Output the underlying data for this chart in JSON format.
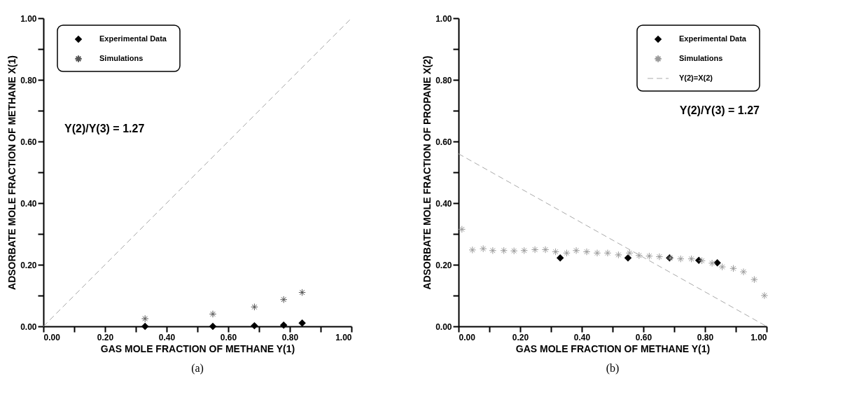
{
  "chart_data": [
    {
      "type": "scatter",
      "xlabel": "GAS MOLE FRACTION OF METHANE Y(1)",
      "ylabel": "ADSORBATE MOLE FRACTION OF METHANE X(1)",
      "xlim": [
        0,
        1
      ],
      "ylim": [
        0,
        1
      ],
      "xticks": [
        {
          "value": 0,
          "label": "0.00"
        },
        {
          "value": 0.1,
          "label": null
        },
        {
          "value": 0.2,
          "label": "0.20"
        },
        {
          "value": 0.3,
          "label": null
        },
        {
          "value": 0.4,
          "label": "0.40"
        },
        {
          "value": 0.5,
          "label": null
        },
        {
          "value": 0.6,
          "label": "0.60"
        },
        {
          "value": 0.7,
          "label": null
        },
        {
          "value": 0.8,
          "label": "0.80"
        },
        {
          "value": 0.9,
          "label": null
        },
        {
          "value": 1,
          "label": "1.00"
        }
      ],
      "yticks": [
        {
          "value": 0,
          "label": "0.00"
        },
        {
          "value": 0.1,
          "label": null
        },
        {
          "value": 0.2,
          "label": "0.20"
        },
        {
          "value": 0.3,
          "label": null
        },
        {
          "value": 0.4,
          "label": "0.40"
        },
        {
          "value": 0.5,
          "label": null
        },
        {
          "value": 0.6,
          "label": "0.60"
        },
        {
          "value": 0.7,
          "label": null
        },
        {
          "value": 0.8,
          "label": "0.80"
        },
        {
          "value": 0.9,
          "label": null
        },
        {
          "value": 1,
          "label": "1.00"
        }
      ],
      "series": [
        {
          "name": "Experimental Data",
          "marker": "diamond",
          "color": "#000000",
          "x": [
            0.33,
            0.55,
            0.685,
            0.78,
            0.84
          ],
          "values": [
            0,
            0,
            0.002,
            0.004,
            0.011
          ]
        },
        {
          "name": "Simulations",
          "marker": "cross",
          "color": "#555555",
          "x": [
            0.33,
            0.55,
            0.685,
            0.78,
            0.84
          ],
          "values": [
            0.025,
            0.04,
            0.063,
            0.087,
            0.11
          ]
        },
        {
          "type": "line",
          "line_style": "dashed",
          "color": "#aaaaaa",
          "x": [
            0,
            1
          ],
          "values": [
            0,
            1
          ]
        }
      ],
      "legend": "top left",
      "grid": false,
      "annotations": [
        "Y(2)/Y(3) = 1.27",
        "(a)"
      ]
    },
    {
      "type": "scatter",
      "xlabel": "GAS MOLE FRACTION OF METHANE Y(1)",
      "ylabel": "ADSORBATE MOLE FRACTION OF PROPANE  X(2)",
      "xlim": [
        0,
        1
      ],
      "ylim": [
        0,
        1
      ],
      "xticks": [
        {
          "value": 0,
          "label": "0.00"
        },
        {
          "value": 0.1,
          "label": null
        },
        {
          "value": 0.2,
          "label": "0.20"
        },
        {
          "value": 0.3,
          "label": null
        },
        {
          "value": 0.4,
          "label": "0.40"
        },
        {
          "value": 0.5,
          "label": null
        },
        {
          "value": 0.6,
          "label": "0.60"
        },
        {
          "value": 0.7,
          "label": null
        },
        {
          "value": 0.8,
          "label": "0.80"
        },
        {
          "value": 0.9,
          "label": null
        },
        {
          "value": 1,
          "label": "1.00"
        }
      ],
      "yticks": [
        {
          "value": 0,
          "label": "0.00"
        },
        {
          "value": 0.1,
          "label": null
        },
        {
          "value": 0.2,
          "label": "0.20"
        },
        {
          "value": 0.3,
          "label": null
        },
        {
          "value": 0.4,
          "label": "0.40"
        },
        {
          "value": 0.5,
          "label": null
        },
        {
          "value": 0.6,
          "label": "0.60"
        },
        {
          "value": 0.7,
          "label": null
        },
        {
          "value": 0.8,
          "label": "0.80"
        },
        {
          "value": 0.9,
          "label": null
        },
        {
          "value": 1,
          "label": "1.00"
        }
      ],
      "series": [
        {
          "name": "Experimental Data",
          "marker": "diamond",
          "color": "#000000",
          "x": [
            0.33,
            0.55,
            0.685,
            0.78,
            0.84
          ],
          "values": [
            0.222,
            0.222,
            0.222,
            0.214,
            0.206
          ]
        },
        {
          "name": "Simulations",
          "marker": "cross",
          "color": "#999999",
          "x": [
            0.011,
            0.045,
            0.08,
            0.111,
            0.147,
            0.18,
            0.213,
            0.248,
            0.282,
            0.315,
            0.351,
            0.382,
            0.416,
            0.45,
            0.484,
            0.519,
            0.555,
            0.586,
            0.619,
            0.652,
            0.688,
            0.721,
            0.756,
            0.79,
            0.823,
            0.856,
            0.892,
            0.925,
            0.96,
            0.993
          ],
          "values": [
            0.315,
            0.248,
            0.252,
            0.246,
            0.246,
            0.245,
            0.246,
            0.249,
            0.249,
            0.242,
            0.238,
            0.246,
            0.242,
            0.238,
            0.238,
            0.232,
            0.238,
            0.23,
            0.228,
            0.226,
            0.222,
            0.219,
            0.219,
            0.213,
            0.205,
            0.193,
            0.188,
            0.177,
            0.152,
            0.1
          ]
        },
        {
          "name": "Y(2)=X(2)",
          "type": "line",
          "line_style": "dashed",
          "color": "#aaaaaa",
          "x": [
            0,
            1
          ],
          "values": [
            0.56,
            0
          ]
        }
      ],
      "legend": "top right",
      "grid": false,
      "annotations": [
        "Y(2)/Y(3) = 1.27",
        "(b)"
      ]
    }
  ]
}
